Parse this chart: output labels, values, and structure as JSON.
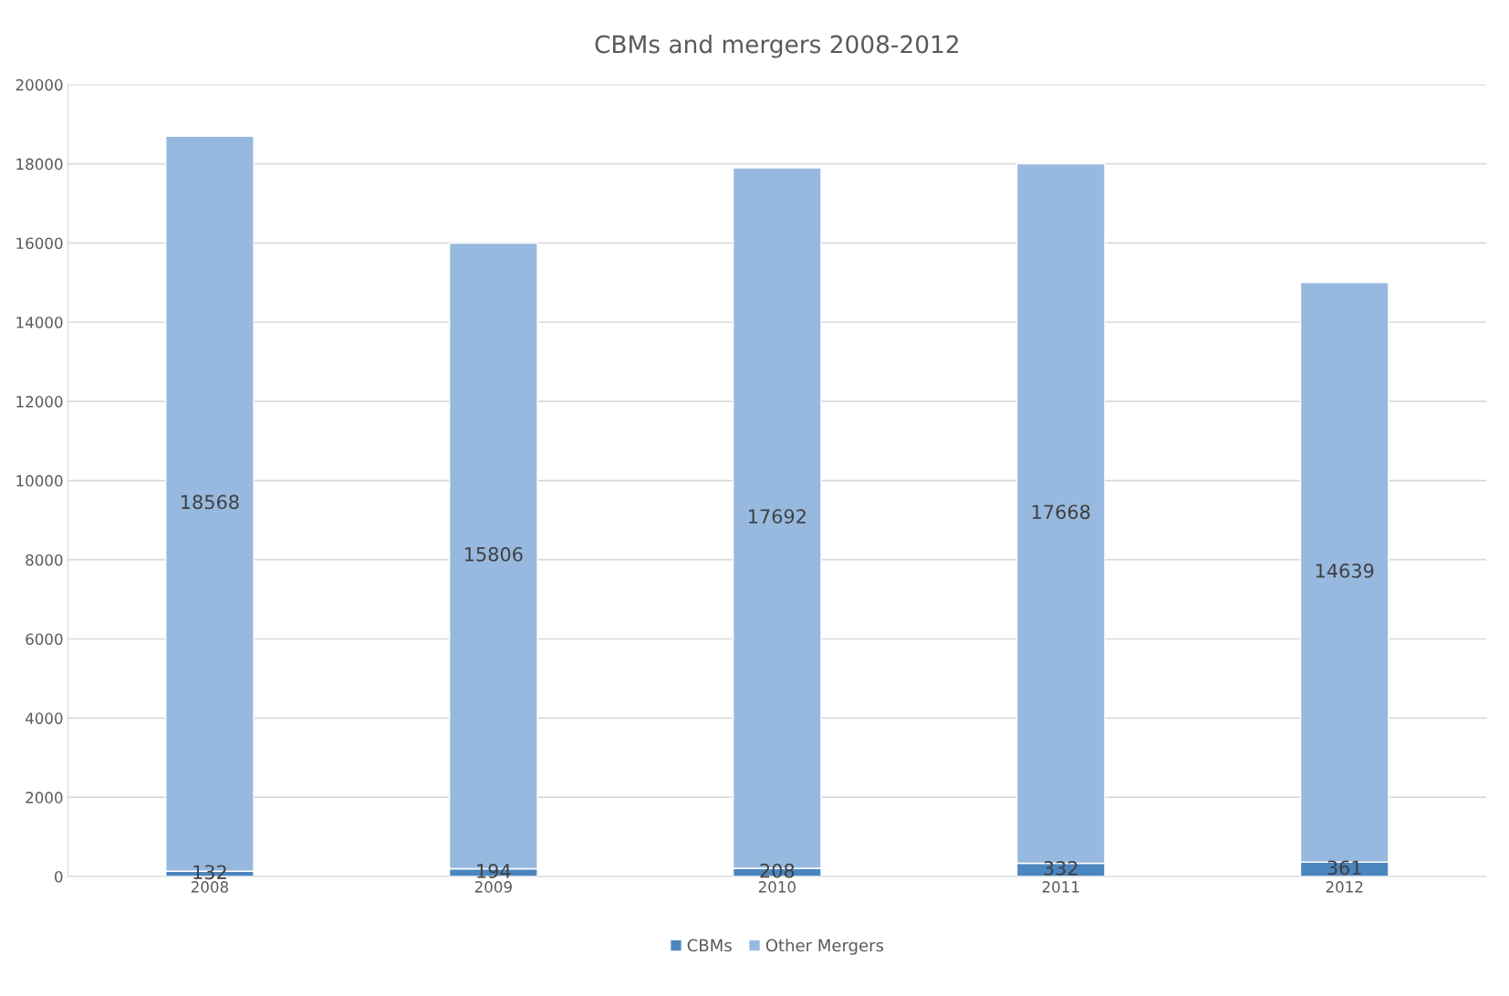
{
  "chart_data": {
    "type": "bar",
    "title": "CBMs and mergers 2008-2012",
    "categories": [
      "2008",
      "2009",
      "2010",
      "2011",
      "2012"
    ],
    "series": [
      {
        "name": "CBMs",
        "color": "#4a86c0",
        "values": [
          132,
          194,
          208,
          332,
          361
        ]
      },
      {
        "name": "Other Mergers",
        "color": "#97b9e0",
        "values": [
          18568,
          15806,
          17692,
          17668,
          14639
        ]
      }
    ],
    "stacked": true,
    "data_labels": true,
    "ylim": [
      0,
      20000
    ],
    "yticks": [
      0,
      2000,
      4000,
      6000,
      8000,
      10000,
      12000,
      14000,
      16000,
      18000,
      20000
    ],
    "grid": "y",
    "legend": "bottom"
  }
}
